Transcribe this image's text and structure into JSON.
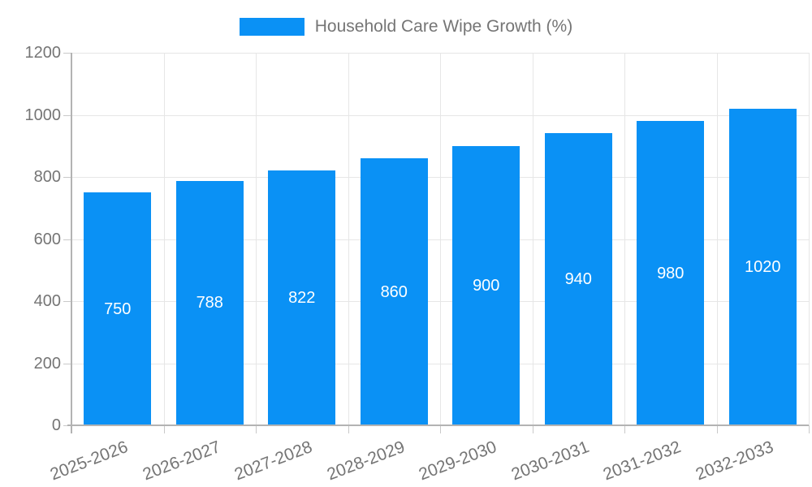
{
  "chart_data": {
    "type": "bar",
    "title": "Household Care Wipe Growth (%)",
    "categories": [
      "2025-2026",
      "2026-2027",
      "2027-2028",
      "2028-2029",
      "2029-2030",
      "2030-2031",
      "2031-2032",
      "2032-2033"
    ],
    "series": [
      {
        "name": "Household Care Wipe Growth (%)",
        "values": [
          750,
          788,
          822,
          860,
          900,
          940,
          980,
          1020
        ]
      }
    ],
    "value_labels": [
      750,
      788,
      822,
      860,
      900,
      940,
      980,
      1020
    ],
    "xlabel": "",
    "ylabel": "",
    "ylim": [
      0,
      1200
    ],
    "yticks": [
      0,
      200,
      400,
      600,
      800,
      1000,
      1200
    ],
    "grid": true,
    "legend_position": "top",
    "x_label_rotation_deg": -21,
    "bar_color": "#0a91f5",
    "value_label_color": "#ffffff",
    "axis_text_color": "#757575",
    "grid_color": "#e6e6e6",
    "axis_line_color": "#b3b3b3",
    "tick_color": "#c9c9c9",
    "background_color": "#ffffff"
  }
}
